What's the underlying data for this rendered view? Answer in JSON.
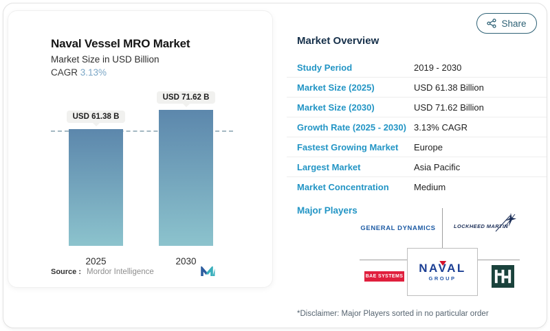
{
  "share": {
    "label": "Share",
    "icon": "share-nodes-icon",
    "color": "#2D6175"
  },
  "left_card": {
    "title": "Naval Vessel MRO Market",
    "subtitle": "Market Size in USD Billion",
    "cagr_label": "CAGR",
    "cagr_value": "3.13%",
    "source_label": "Source :",
    "source_value": "Mordor Intelligence",
    "logo": "mordor-intelligence-logo"
  },
  "chart_data": {
    "type": "bar",
    "title": "Naval Vessel MRO Market",
    "subtitle": "Market Size in USD Billion",
    "categories": [
      "2025",
      "2030"
    ],
    "values": [
      61.38,
      71.62
    ],
    "value_labels": [
      "USD 61.38 B",
      "USD 71.62 B"
    ],
    "unit": "USD Billion",
    "ylim": [
      0,
      80
    ],
    "grid": false,
    "reference_line": {
      "y": 61.38,
      "style": "dashed"
    },
    "bar_gradient": [
      "#5C87AC",
      "#8CC3CD"
    ]
  },
  "overview": {
    "heading": "Market Overview",
    "rows": [
      {
        "label": "Study Period",
        "value": "2019 - 2030"
      },
      {
        "label": "Market Size (2025)",
        "value": "USD 61.38 Billion"
      },
      {
        "label": "Market Size (2030)",
        "value": "USD 71.62 Billion"
      },
      {
        "label": "Growth Rate (2025 - 2030)",
        "value": "3.13% CAGR"
      },
      {
        "label": "Fastest Growing Market",
        "value": "Europe"
      },
      {
        "label": "Largest Market",
        "value": "Asia Pacific"
      },
      {
        "label": "Market Concentration",
        "value": "Medium"
      }
    ]
  },
  "major_players": {
    "heading": "Major Players",
    "disclaimer": "*Disclaimer: Major Players sorted in no particular order",
    "general_dynamics": "GENERAL DYNAMICS",
    "lockheed_martin": "LOCKHEED MARTIN",
    "bae_systems": "BAE SYSTEMS",
    "naval_group_word": "NAVAL",
    "naval_group_sub": "GROUP",
    "hii": "Huntington Ingalls Industries"
  },
  "colors": {
    "accent_blue": "#2395C5",
    "heading_navy": "#16304A",
    "cagr_blue": "#7AA6C6",
    "bar_top": "#5C87AC",
    "bar_bottom": "#8CC3CD",
    "gd_blue": "#1D5BA4",
    "lm_navy": "#1B2E57",
    "bae_red": "#E01F3D",
    "naval_blue": "#1C3F94",
    "naval_red": "#D6112B",
    "hii_green": "#1A423C",
    "mordor_blue": "#2D5D9F",
    "mordor_teal": "#3AAFBC"
  }
}
